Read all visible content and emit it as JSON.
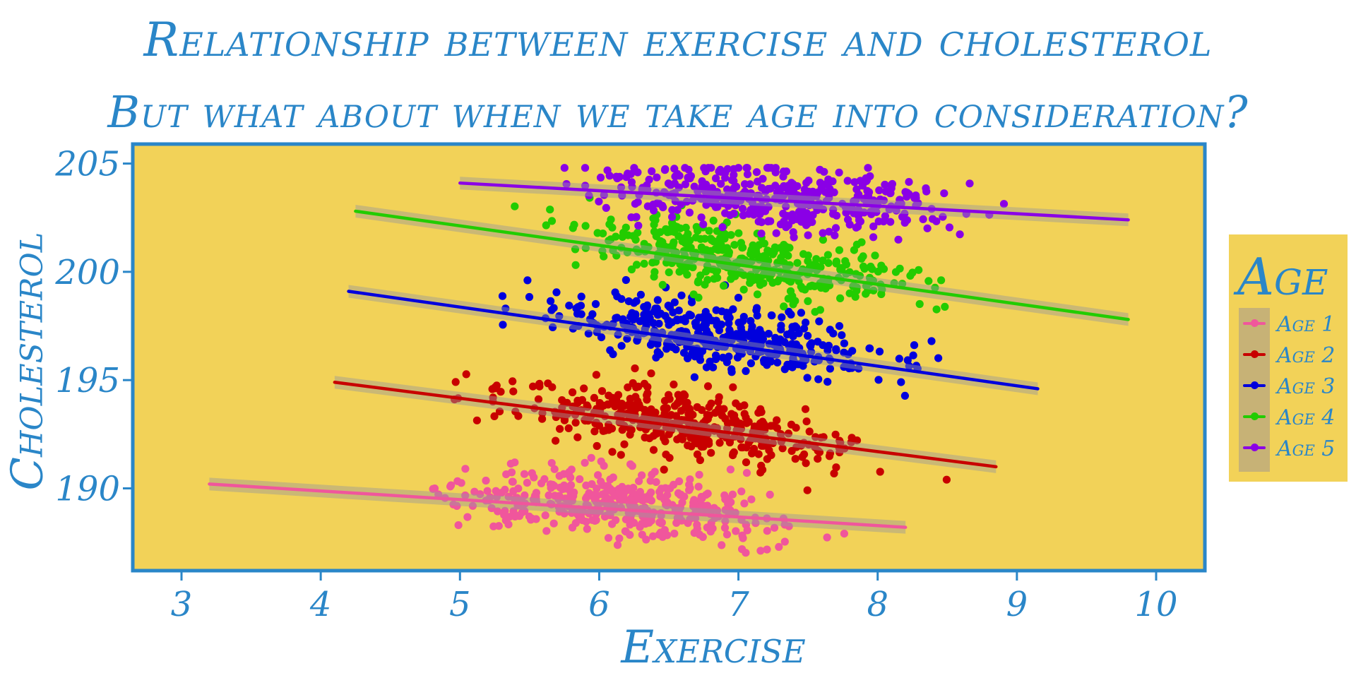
{
  "chart_data": {
    "type": "scatter",
    "title": "Relationship between exercise and cholesterol",
    "subtitle": "But what about when we take age into consideration?",
    "xlabel": "Exercise",
    "ylabel": "Cholesterol",
    "xlim": [
      2.65,
      10.35
    ],
    "ylim": [
      186.2,
      205.9
    ],
    "x_ticks": [
      3,
      4,
      5,
      6,
      7,
      8,
      9,
      10
    ],
    "y_ticks": [
      190,
      195,
      200,
      205
    ],
    "legend_title": "Age",
    "legend_position": "right",
    "background_color": "#f2d258",
    "axis_color": "#2a86c8",
    "series": [
      {
        "name": "Age 1",
        "color": "#f0569c",
        "fit": {
          "x": [
            3.2,
            8.2
          ],
          "y": [
            190.2,
            188.2
          ]
        },
        "x_range": [
          3.2,
          8.2
        ],
        "y_range": [
          187.0,
          192.5
        ],
        "x_mean": 6.1,
        "y_mean": 189.3,
        "n": 400
      },
      {
        "name": "Age 2",
        "color": "#c80000",
        "fit": {
          "x": [
            4.1,
            8.85
          ],
          "y": [
            194.9,
            191.0
          ]
        },
        "x_range": [
          4.0,
          9.0
        ],
        "y_range": [
          189.0,
          196.5
        ],
        "x_mean": 6.6,
        "y_mean": 193.0,
        "n": 400
      },
      {
        "name": "Age 3",
        "color": "#0000dd",
        "fit": {
          "x": [
            4.2,
            9.15
          ],
          "y": [
            199.1,
            194.6
          ]
        },
        "x_range": [
          4.2,
          9.15
        ],
        "y_range": [
          194.0,
          200.0
        ],
        "x_mean": 6.9,
        "y_mean": 197.0,
        "n": 400
      },
      {
        "name": "Age 4",
        "color": "#22cc00",
        "fit": {
          "x": [
            4.25,
            9.8
          ],
          "y": [
            202.8,
            197.8
          ]
        },
        "x_range": [
          4.25,
          9.8
        ],
        "y_range": [
          197.5,
          204.2
        ],
        "x_mean": 7.1,
        "y_mean": 200.5,
        "n": 400
      },
      {
        "name": "Age 5",
        "color": "#8a00e6",
        "fit": {
          "x": [
            5.0,
            9.8
          ],
          "y": [
            204.1,
            202.4
          ]
        },
        "x_range": [
          5.0,
          9.8
        ],
        "y_range": [
          201.0,
          204.8
        ],
        "x_mean": 7.3,
        "y_mean": 203.4,
        "n": 400
      }
    ]
  }
}
